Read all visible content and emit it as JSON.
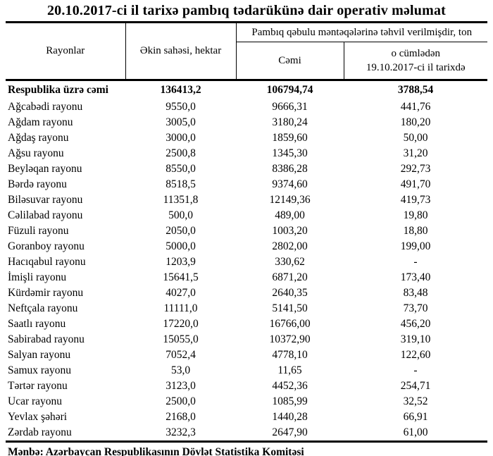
{
  "title": "20.10.2017-ci il tarixə pambıq tədarükünə dair operativ məlumat",
  "table": {
    "columns": {
      "rayonlar": "Rayonlar",
      "ekin_sahesi": "Əkin sahəsi, hektar",
      "tehvil_group": "Pambıq qəbulu məntəqələrinə təhvil verilmişdir, ton",
      "cemi": "Cəmi",
      "o_cumleden": "o cümlədən\n19.10.2017-ci il tarixdə"
    },
    "rows": [
      {
        "name": "Respublika üzrə cəmi",
        "area": "136413,2",
        "total": "106794,74",
        "daily": "3788,54",
        "is_total": true
      },
      {
        "name": "Ağcabədi rayonu",
        "area": "9550,0",
        "total": "9666,31",
        "daily": "441,76",
        "is_total": false
      },
      {
        "name": "Ağdam rayonu",
        "area": "3005,0",
        "total": "3180,24",
        "daily": "180,20",
        "is_total": false
      },
      {
        "name": "Ağdaş rayonu",
        "area": "3000,0",
        "total": "1859,60",
        "daily": "50,00",
        "is_total": false
      },
      {
        "name": "Ağsu rayonu",
        "area": "2500,8",
        "total": "1345,30",
        "daily": "31,20",
        "is_total": false
      },
      {
        "name": "Beyləqan rayonu",
        "area": "8550,0",
        "total": "8386,28",
        "daily": "292,73",
        "is_total": false
      },
      {
        "name": "Bərdə rayonu",
        "area": "8518,5",
        "total": "9374,60",
        "daily": "491,70",
        "is_total": false
      },
      {
        "name": "Biləsuvar rayonu",
        "area": "11351,8",
        "total": "12149,36",
        "daily": "419,73",
        "is_total": false
      },
      {
        "name": "Cəlilabad rayonu",
        "area": "500,0",
        "total": "489,00",
        "daily": "19,80",
        "is_total": false
      },
      {
        "name": "Füzuli rayonu",
        "area": "2050,0",
        "total": "1003,20",
        "daily": "18,80",
        "is_total": false
      },
      {
        "name": "Goranboy rayonu",
        "area": "5000,0",
        "total": "2802,00",
        "daily": "199,00",
        "is_total": false
      },
      {
        "name": "Hacıqabul rayonu",
        "area": "1203,9",
        "total": "330,62",
        "daily": "-",
        "is_total": false
      },
      {
        "name": "İmişli rayonu",
        "area": "15641,5",
        "total": "6871,20",
        "daily": "173,40",
        "is_total": false
      },
      {
        "name": "Kürdəmir rayonu",
        "area": "4027,0",
        "total": "2640,35",
        "daily": "83,48",
        "is_total": false
      },
      {
        "name": "Neftçala rayonu",
        "area": "11111,0",
        "total": "5141,50",
        "daily": "73,70",
        "is_total": false
      },
      {
        "name": "Saatlı rayonu",
        "area": "17220,0",
        "total": "16766,00",
        "daily": "456,20",
        "is_total": false
      },
      {
        "name": "Sabirabad rayonu",
        "area": "15055,0",
        "total": "10372,90",
        "daily": "319,10",
        "is_total": false
      },
      {
        "name": "Salyan rayonu",
        "area": "7052,4",
        "total": "4778,10",
        "daily": "122,60",
        "is_total": false
      },
      {
        "name": "Samux rayonu",
        "area": "53,0",
        "total": "11,65",
        "daily": "-",
        "is_total": false
      },
      {
        "name": "Tərtər rayonu",
        "area": "3123,0",
        "total": "4452,36",
        "daily": "254,71",
        "is_total": false
      },
      {
        "name": "Ucar rayonu",
        "area": "2500,0",
        "total": "1085,99",
        "daily": "32,52",
        "is_total": false
      },
      {
        "name": "Yevlax şəhəri",
        "area": "2168,0",
        "total": "1440,28",
        "daily": "66,91",
        "is_total": false
      },
      {
        "name": "Zərdab rayonu",
        "area": "3232,3",
        "total": "2647,90",
        "daily": "61,00",
        "is_total": false
      }
    ]
  },
  "source": "Mənbə: Azərbaycan Respublikasının Dövlət Statistika Komitəsi"
}
